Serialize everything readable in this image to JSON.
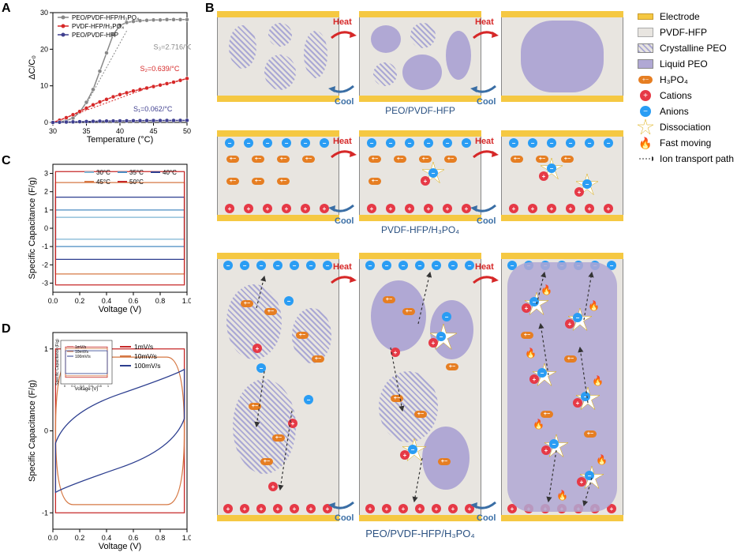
{
  "panelA": {
    "label": "A",
    "xlabel": "Temperature (°C)",
    "ylabel": "ΔC/C₀",
    "xlim": [
      30,
      50
    ],
    "ylim": [
      0,
      30
    ],
    "xticks": [
      30,
      35,
      40,
      45,
      50
    ],
    "yticks": [
      0,
      10,
      20,
      30
    ],
    "series": [
      {
        "name": "PEO/PVDF-HFP/H₃PO₄",
        "color": "#888888",
        "x": [
          30,
          31,
          32,
          33,
          34,
          35,
          36,
          37,
          38,
          39,
          40,
          41,
          42,
          43,
          44,
          45,
          46,
          47,
          48,
          49,
          50
        ],
        "y": [
          0,
          0.2,
          0.5,
          1.2,
          2.8,
          5.5,
          9,
          14,
          19,
          24,
          26.5,
          27.3,
          27.6,
          27.8,
          27.9,
          28,
          28,
          28.1,
          28.1,
          28.1,
          28.1
        ]
      },
      {
        "name": "PVDF-HFP/H₃PO₄",
        "color": "#d62828",
        "x": [
          30,
          31,
          32,
          33,
          34,
          35,
          36,
          37,
          38,
          39,
          40,
          41,
          42,
          43,
          44,
          45,
          46,
          47,
          48,
          49,
          50
        ],
        "y": [
          0,
          0.6,
          1.3,
          2.1,
          3,
          3.9,
          4.8,
          5.6,
          6.3,
          7,
          7.6,
          8.1,
          8.6,
          9,
          9.4,
          9.8,
          10.2,
          10.6,
          11,
          11.5,
          12
        ]
      },
      {
        "name": "PEO/PVDF-HFP",
        "color": "#3f3f8f",
        "x": [
          30,
          31,
          32,
          33,
          34,
          35,
          36,
          37,
          38,
          39,
          40,
          41,
          42,
          43,
          44,
          45,
          46,
          47,
          48,
          49,
          50
        ],
        "y": [
          0,
          0.05,
          0.1,
          0.15,
          0.2,
          0.25,
          0.3,
          0.35,
          0.38,
          0.4,
          0.42,
          0.44,
          0.46,
          0.48,
          0.5,
          0.51,
          0.52,
          0.53,
          0.54,
          0.55,
          0.56
        ]
      }
    ],
    "annotations": [
      {
        "text": "S₃=2.716/°C",
        "color": "#888888"
      },
      {
        "text": "S₂=0.639/°C",
        "color": "#d62828"
      },
      {
        "text": "S₁=0.062/°C",
        "color": "#3f3f8f"
      }
    ]
  },
  "panelC": {
    "label": "C",
    "xlabel": "Voltage (V)",
    "ylabel": "Specific Capacitance (F/g)",
    "xlim": [
      0,
      1
    ],
    "ylim": [
      -3.5,
      3.5
    ],
    "xticks": [
      0.0,
      0.2,
      0.4,
      0.6,
      0.8,
      1.0
    ],
    "yticks": [
      -3,
      -2,
      -1,
      0,
      1,
      2,
      3
    ],
    "temps": [
      {
        "label": "30°C",
        "color": "#7db4d4"
      },
      {
        "label": "35°C",
        "color": "#4a8cc2"
      },
      {
        "label": "40°C",
        "color": "#2c3e8f"
      },
      {
        "label": "45°C",
        "color": "#d67844"
      },
      {
        "label": "50°C",
        "color": "#c62828"
      }
    ],
    "cv_amplitudes": [
      0.6,
      1.0,
      1.7,
      2.5,
      3.1
    ]
  },
  "panelD": {
    "label": "D",
    "xlabel": "Voltage (V)",
    "ylabel": "Specific Capacitance (F/g)",
    "xlim": [
      0,
      1
    ],
    "ylim": [
      -1.2,
      1.2
    ],
    "xticks": [
      0.0,
      0.2,
      0.4,
      0.6,
      0.8,
      1.0
    ],
    "yticks": [
      -1,
      0,
      1
    ],
    "rates": [
      {
        "label": "1mV/s",
        "color": "#c62828",
        "amp": 1.0,
        "shape": "rect"
      },
      {
        "label": "10mV/s",
        "color": "#d67844",
        "amp": 0.9,
        "shape": "round"
      },
      {
        "label": "100mV/s",
        "color": "#2c3e8f",
        "amp": 0.75,
        "shape": "sloped"
      }
    ],
    "inset": {
      "xlabel": "Voltage (V)",
      "ylabel": "Specific Capacitance (F/g)"
    }
  },
  "panelB": {
    "label": "B",
    "systems": [
      "PEO/PVDF-HFP",
      "PVDF-HFP/H₃PO₄",
      "PEO/PVDF-HFP/H₃PO₄"
    ],
    "transitions": [
      "Heat",
      "Cool"
    ],
    "legend": [
      {
        "key": "Electrode",
        "type": "electrode",
        "color": "#f5c842"
      },
      {
        "key": "PVDF-HFP",
        "type": "box",
        "color": "#e8e5e0"
      },
      {
        "key": "Crystalline PEO",
        "type": "hatched",
        "color": "#aaa8d4"
      },
      {
        "key": "Liquid PEO",
        "type": "solid",
        "color": "#b0a8d4"
      },
      {
        "key": "H₃PO₄",
        "type": "h3po4",
        "color": "#e67e22"
      },
      {
        "key": "Cations",
        "type": "cation",
        "color": "#e63946"
      },
      {
        "key": "Anions",
        "type": "anion",
        "color": "#2a9df4"
      },
      {
        "key": "Dissociation",
        "type": "star",
        "color": "#ffffff"
      },
      {
        "key": "Fast moving",
        "type": "fire",
        "color": "#f4a261"
      },
      {
        "key": "Ion transport path",
        "type": "arrow",
        "color": "#333333"
      }
    ]
  },
  "colors": {
    "electrode": "#f5c842",
    "pvdf_bg": "#e8e5e0",
    "crystalline_peo": "#aaa8d4",
    "liquid_peo": "#b0a8d4",
    "h3po4": "#e67e22",
    "cation": "#e63946",
    "anion": "#2a9df4",
    "heat": "#d62828",
    "cool": "#3a6ea5"
  }
}
